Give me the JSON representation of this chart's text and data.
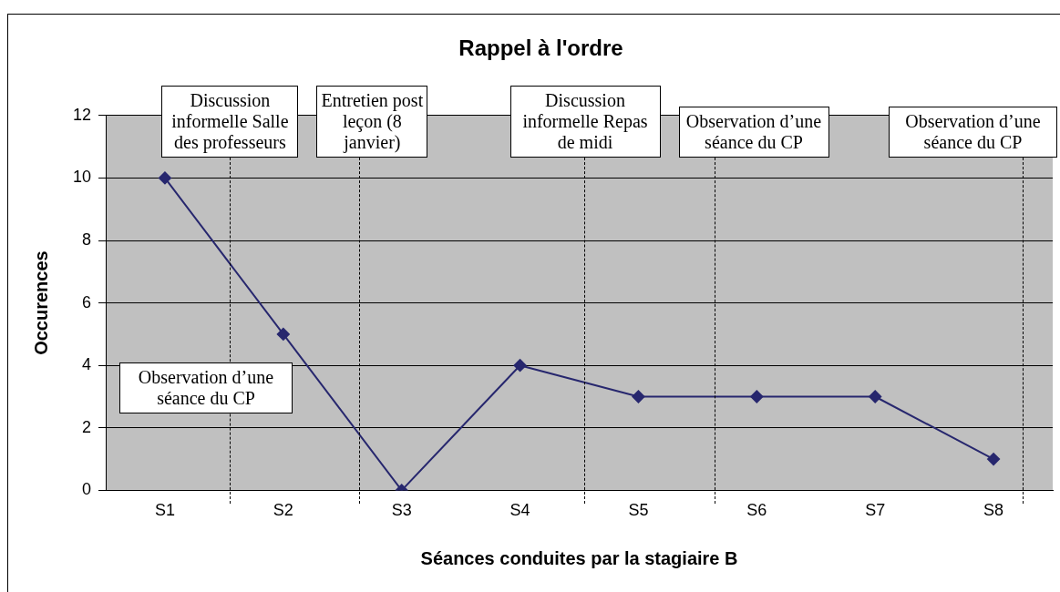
{
  "chart_data": {
    "type": "line",
    "title": "Rappel à l'ordre",
    "xlabel": "Séances conduites par la stagiaire B",
    "ylabel": "Occurences",
    "categories": [
      "S1",
      "S2",
      "S3",
      "S4",
      "S5",
      "S6",
      "S7",
      "S8"
    ],
    "series": [
      {
        "color": "#27276e",
        "values": [
          10,
          5,
          0,
          4,
          3,
          3,
          3,
          1
        ]
      }
    ],
    "ylim": [
      0,
      12
    ],
    "yticks": [
      0,
      2,
      4,
      6,
      8,
      10,
      12
    ],
    "grid": "y",
    "marker": "diamond",
    "line_style": "solid",
    "legend": false,
    "annotations": [
      "Discussion informelle Salle des professeurs",
      "Entretien post leçon (8 janvier)",
      "Discussion informelle Repas de midi",
      "Observation d’une séance du CP",
      "Observation d’une séance du CP",
      "Observation d’une séance du CP"
    ]
  }
}
